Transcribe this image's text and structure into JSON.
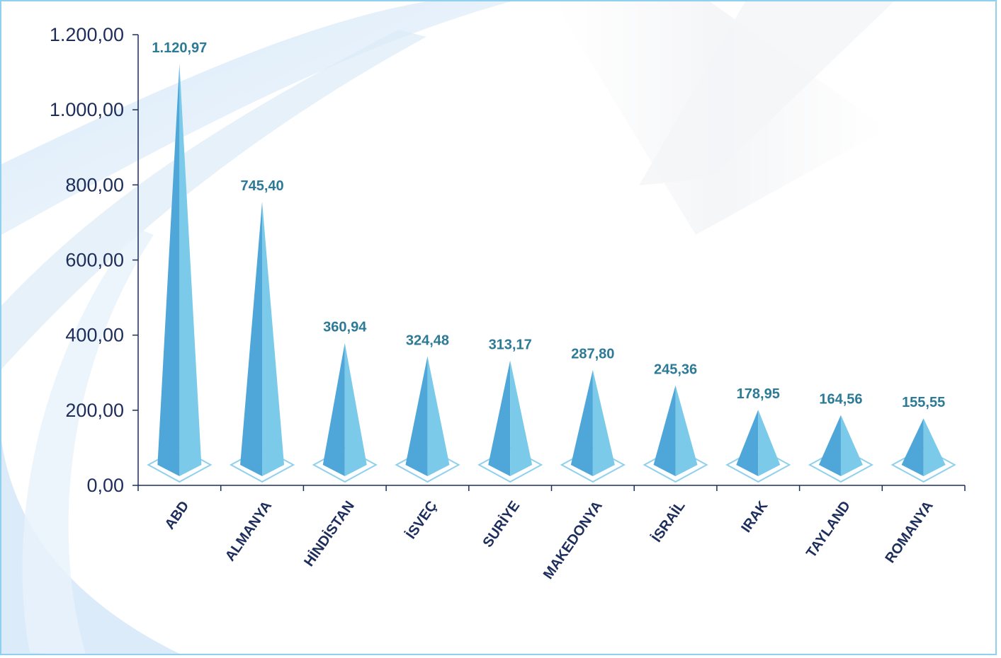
{
  "chart_data": {
    "type": "bar",
    "title": "",
    "xlabel": "",
    "ylabel": "",
    "ylim": [
      0,
      1200
    ],
    "yticks": [
      "0,00",
      "200,00",
      "400,00",
      "600,00",
      "800,00",
      "1.000,00",
      "1.200,00"
    ],
    "categories": [
      "ABD",
      "ALMANYA",
      "HİNDİSTAN",
      "İSVEÇ",
      "SURİYE",
      "MAKEDONYA",
      "İSRAİL",
      "IRAK",
      "TAYLAND",
      "ROMANYA"
    ],
    "values": [
      1120.97,
      745.4,
      360.94,
      324.48,
      313.17,
      287.8,
      245.36,
      178.95,
      164.56,
      155.55
    ],
    "value_labels": [
      "1.120,97",
      "745,40",
      "360,94",
      "324,48",
      "313,17",
      "287,80",
      "245,36",
      "178,95",
      "164,56",
      "155,55"
    ],
    "grid": false,
    "legend": "none",
    "colors": {
      "pyramid_dark": "#4fa6d8",
      "pyramid_light": "#7ccaea",
      "base_outline": "#8fd0ee",
      "axis": "#1d2e5c",
      "value_text": "#2c7a96",
      "frame": "#8fd0ee",
      "background_swoosh": "#d6e9f8"
    }
  }
}
